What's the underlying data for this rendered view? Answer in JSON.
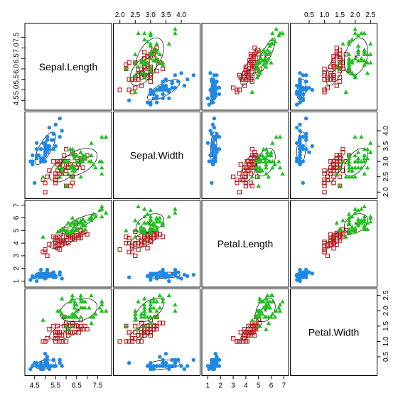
{
  "chart_data": {
    "type": "scatter-matrix",
    "title": "",
    "variables": [
      "Sepal.Length",
      "Sepal.Width",
      "Petal.Length",
      "Petal.Width"
    ],
    "ranges": {
      "Sepal.Length": [
        4.2,
        8.0
      ],
      "Sepal.Width": [
        1.9,
        4.5
      ],
      "Petal.Length": [
        0.8,
        7.1
      ],
      "Petal.Width": [
        0.0,
        2.6
      ]
    },
    "ticks": {
      "Sepal.Length": [
        "4.5",
        "5.0",
        "5.5",
        "6.0",
        "6.5",
        "7.0",
        "7.5"
      ],
      "Sepal.Width": [
        "2.0",
        "2.5",
        "3.0",
        "3.5",
        "4.0"
      ],
      "Petal.Length": [
        "1",
        "2",
        "3",
        "4",
        "5",
        "6",
        "7"
      ],
      "Petal.Width": [
        "0.5",
        "1.0",
        "1.5",
        "2.0",
        "2.5"
      ]
    },
    "tick_labels_shown": {
      "Sepal.Length": [
        "4.5",
        "5.0",
        "5.5",
        "6.0",
        "6.5",
        "7.0",
        "7.5"
      ],
      "Sepal.Width": [
        "2.0",
        "2.5",
        "3.0",
        "3.5",
        "4.0"
      ],
      "Petal.Length": [
        "1",
        "2",
        "3",
        "4",
        "5",
        "6",
        "7"
      ],
      "Petal.Width": [
        "0.5",
        "1.0",
        "1.5",
        "2.0",
        "2.5"
      ]
    },
    "bottom_tick_labels": {
      "Sepal.Length": [
        "4.5",
        "5.5",
        "6.5",
        "7.5"
      ],
      "Sepal.Width": [
        "2.0",
        "2.5",
        "3.0",
        "3.5",
        "4.0"
      ],
      "Petal.Length": [
        "1",
        "2",
        "3",
        "4",
        "5",
        "6",
        "7"
      ],
      "Petal.Width": [
        "0.5",
        "1.0",
        "1.5",
        "2.0",
        "2.5"
      ]
    },
    "series": [
      {
        "color": "#1E88E5",
        "marker": "circle",
        "points": [
          [
            5.1,
            3.5,
            1.4,
            0.2
          ],
          [
            4.9,
            3.0,
            1.4,
            0.2
          ],
          [
            4.7,
            3.2,
            1.3,
            0.2
          ],
          [
            4.6,
            3.1,
            1.5,
            0.2
          ],
          [
            5.0,
            3.6,
            1.4,
            0.2
          ],
          [
            5.4,
            3.9,
            1.7,
            0.4
          ],
          [
            4.6,
            3.4,
            1.4,
            0.3
          ],
          [
            5.0,
            3.4,
            1.5,
            0.2
          ],
          [
            4.4,
            2.9,
            1.4,
            0.2
          ],
          [
            4.9,
            3.1,
            1.5,
            0.1
          ],
          [
            5.4,
            3.7,
            1.5,
            0.2
          ],
          [
            4.8,
            3.4,
            1.6,
            0.2
          ],
          [
            4.8,
            3.0,
            1.4,
            0.1
          ],
          [
            4.3,
            3.0,
            1.1,
            0.1
          ],
          [
            5.8,
            4.0,
            1.2,
            0.2
          ],
          [
            5.7,
            4.4,
            1.5,
            0.4
          ],
          [
            5.4,
            3.9,
            1.3,
            0.4
          ],
          [
            5.1,
            3.5,
            1.4,
            0.3
          ],
          [
            5.7,
            3.8,
            1.7,
            0.3
          ],
          [
            5.1,
            3.8,
            1.5,
            0.3
          ],
          [
            5.4,
            3.4,
            1.7,
            0.2
          ],
          [
            5.1,
            3.7,
            1.5,
            0.4
          ],
          [
            4.6,
            3.6,
            1.0,
            0.2
          ],
          [
            5.1,
            3.3,
            1.7,
            0.5
          ],
          [
            4.8,
            3.4,
            1.9,
            0.2
          ],
          [
            5.0,
            3.0,
            1.6,
            0.2
          ],
          [
            5.0,
            3.4,
            1.6,
            0.4
          ],
          [
            5.2,
            3.5,
            1.5,
            0.2
          ],
          [
            5.2,
            3.4,
            1.4,
            0.2
          ],
          [
            4.7,
            3.2,
            1.6,
            0.2
          ],
          [
            4.8,
            3.1,
            1.6,
            0.2
          ],
          [
            5.4,
            3.4,
            1.5,
            0.4
          ],
          [
            5.2,
            4.1,
            1.5,
            0.1
          ],
          [
            5.5,
            4.2,
            1.4,
            0.2
          ],
          [
            4.9,
            3.1,
            1.5,
            0.2
          ],
          [
            5.0,
            3.2,
            1.2,
            0.2
          ],
          [
            5.5,
            3.5,
            1.3,
            0.2
          ],
          [
            4.9,
            3.6,
            1.4,
            0.1
          ],
          [
            4.4,
            3.0,
            1.3,
            0.2
          ],
          [
            5.1,
            3.4,
            1.5,
            0.2
          ],
          [
            5.0,
            3.5,
            1.3,
            0.3
          ],
          [
            4.5,
            2.3,
            1.3,
            0.3
          ],
          [
            4.4,
            3.2,
            1.3,
            0.2
          ],
          [
            5.0,
            3.5,
            1.6,
            0.6
          ],
          [
            5.1,
            3.8,
            1.9,
            0.4
          ],
          [
            4.8,
            3.0,
            1.4,
            0.3
          ],
          [
            5.1,
            3.8,
            1.6,
            0.2
          ],
          [
            4.6,
            3.2,
            1.4,
            0.2
          ],
          [
            5.3,
            3.7,
            1.5,
            0.2
          ],
          [
            5.0,
            3.3,
            1.4,
            0.2
          ]
        ]
      },
      {
        "color": "#B71C1C",
        "marker": "square",
        "points": [
          [
            7.0,
            3.2,
            4.7,
            1.4
          ],
          [
            6.4,
            3.2,
            4.5,
            1.5
          ],
          [
            6.9,
            3.1,
            4.9,
            1.5
          ],
          [
            5.5,
            2.3,
            4.0,
            1.3
          ],
          [
            6.5,
            2.8,
            4.6,
            1.5
          ],
          [
            5.7,
            2.8,
            4.5,
            1.3
          ],
          [
            6.3,
            3.3,
            4.7,
            1.6
          ],
          [
            4.9,
            2.4,
            3.3,
            1.0
          ],
          [
            6.6,
            2.9,
            4.6,
            1.3
          ],
          [
            5.2,
            2.7,
            3.9,
            1.4
          ],
          [
            5.0,
            2.0,
            3.5,
            1.0
          ],
          [
            5.9,
            3.0,
            4.2,
            1.5
          ],
          [
            6.0,
            2.2,
            4.0,
            1.0
          ],
          [
            6.1,
            2.9,
            4.7,
            1.4
          ],
          [
            5.6,
            2.9,
            3.6,
            1.3
          ],
          [
            6.7,
            3.1,
            4.4,
            1.4
          ],
          [
            5.6,
            3.0,
            4.5,
            1.5
          ],
          [
            5.8,
            2.7,
            4.1,
            1.0
          ],
          [
            6.2,
            2.2,
            4.5,
            1.5
          ],
          [
            5.6,
            2.5,
            3.9,
            1.1
          ],
          [
            5.9,
            3.2,
            4.8,
            1.8
          ],
          [
            6.1,
            2.8,
            4.0,
            1.3
          ],
          [
            6.3,
            2.5,
            4.9,
            1.5
          ],
          [
            6.1,
            2.8,
            4.7,
            1.2
          ],
          [
            6.4,
            2.9,
            4.3,
            1.3
          ],
          [
            6.6,
            3.0,
            4.4,
            1.4
          ],
          [
            6.8,
            2.8,
            4.8,
            1.4
          ],
          [
            6.7,
            3.0,
            5.0,
            1.7
          ],
          [
            6.0,
            2.9,
            4.5,
            1.5
          ],
          [
            5.7,
            2.6,
            3.5,
            1.0
          ],
          [
            5.5,
            2.4,
            3.8,
            1.1
          ],
          [
            5.5,
            2.4,
            3.7,
            1.0
          ],
          [
            5.8,
            2.7,
            3.9,
            1.2
          ],
          [
            6.0,
            2.7,
            5.1,
            1.6
          ],
          [
            5.4,
            3.0,
            4.5,
            1.5
          ],
          [
            6.0,
            3.4,
            4.5,
            1.6
          ],
          [
            6.7,
            3.1,
            4.7,
            1.5
          ],
          [
            6.3,
            2.3,
            4.4,
            1.3
          ],
          [
            5.6,
            3.0,
            4.1,
            1.3
          ],
          [
            5.5,
            2.5,
            4.0,
            1.3
          ],
          [
            5.5,
            2.6,
            4.4,
            1.2
          ],
          [
            6.1,
            3.0,
            4.6,
            1.4
          ],
          [
            5.8,
            2.6,
            4.0,
            1.2
          ],
          [
            5.0,
            2.3,
            3.3,
            1.0
          ],
          [
            5.6,
            2.7,
            4.2,
            1.3
          ],
          [
            5.7,
            3.0,
            4.2,
            1.2
          ],
          [
            5.7,
            2.9,
            4.2,
            1.3
          ],
          [
            6.2,
            2.9,
            4.3,
            1.3
          ],
          [
            5.1,
            2.5,
            3.0,
            1.1
          ],
          [
            5.7,
            2.8,
            4.1,
            1.3
          ]
        ]
      },
      {
        "color": "#1FBF1F",
        "marker": "triangle",
        "points": [
          [
            6.3,
            3.3,
            6.0,
            2.5
          ],
          [
            5.8,
            2.7,
            5.1,
            1.9
          ],
          [
            7.1,
            3.0,
            5.9,
            2.1
          ],
          [
            6.3,
            2.9,
            5.6,
            1.8
          ],
          [
            6.5,
            3.0,
            5.8,
            2.2
          ],
          [
            7.6,
            3.0,
            6.6,
            2.1
          ],
          [
            4.9,
            2.5,
            4.5,
            1.7
          ],
          [
            7.3,
            2.9,
            6.3,
            1.8
          ],
          [
            6.7,
            2.5,
            5.8,
            1.8
          ],
          [
            7.2,
            3.6,
            6.1,
            2.5
          ],
          [
            6.5,
            3.2,
            5.1,
            2.0
          ],
          [
            6.4,
            2.7,
            5.3,
            1.9
          ],
          [
            6.8,
            3.0,
            5.5,
            2.1
          ],
          [
            5.7,
            2.5,
            5.0,
            2.0
          ],
          [
            5.8,
            2.8,
            5.1,
            2.4
          ],
          [
            6.4,
            3.2,
            5.3,
            2.3
          ],
          [
            6.5,
            3.0,
            5.5,
            1.8
          ],
          [
            7.7,
            3.8,
            6.7,
            2.2
          ],
          [
            7.7,
            2.6,
            6.9,
            2.3
          ],
          [
            6.0,
            2.2,
            5.0,
            1.5
          ],
          [
            6.9,
            3.2,
            5.7,
            2.3
          ],
          [
            5.6,
            2.8,
            4.9,
            2.0
          ],
          [
            7.7,
            2.8,
            6.7,
            2.0
          ],
          [
            6.3,
            2.7,
            4.9,
            1.8
          ],
          [
            6.7,
            3.3,
            5.7,
            2.1
          ],
          [
            7.2,
            3.2,
            6.0,
            1.8
          ],
          [
            6.2,
            2.8,
            4.8,
            1.8
          ],
          [
            6.1,
            3.0,
            4.9,
            1.8
          ],
          [
            6.4,
            2.8,
            5.6,
            2.1
          ],
          [
            7.2,
            3.0,
            5.8,
            1.6
          ],
          [
            7.4,
            2.8,
            6.1,
            1.9
          ],
          [
            7.9,
            3.8,
            6.4,
            2.0
          ],
          [
            6.4,
            2.8,
            5.6,
            2.2
          ],
          [
            6.3,
            2.8,
            5.1,
            1.5
          ],
          [
            6.1,
            2.6,
            5.6,
            1.4
          ],
          [
            7.7,
            3.0,
            6.1,
            2.3
          ],
          [
            6.3,
            3.4,
            5.6,
            2.4
          ],
          [
            6.4,
            3.1,
            5.5,
            1.8
          ],
          [
            6.0,
            3.0,
            4.8,
            1.8
          ],
          [
            6.9,
            3.1,
            5.4,
            2.1
          ],
          [
            6.7,
            3.1,
            5.6,
            2.4
          ],
          [
            6.9,
            3.1,
            5.1,
            2.3
          ],
          [
            5.8,
            2.7,
            5.1,
            1.9
          ],
          [
            6.8,
            3.2,
            5.9,
            2.3
          ],
          [
            6.7,
            3.3,
            5.7,
            2.5
          ],
          [
            6.7,
            3.0,
            5.2,
            2.3
          ],
          [
            6.3,
            2.5,
            5.0,
            1.9
          ],
          [
            6.5,
            3.0,
            5.2,
            2.0
          ],
          [
            6.2,
            3.4,
            5.4,
            2.3
          ],
          [
            5.9,
            3.0,
            5.1,
            1.8
          ]
        ]
      }
    ],
    "ellipses": "data ellipse per group drawn in every off-diagonal panel"
  }
}
